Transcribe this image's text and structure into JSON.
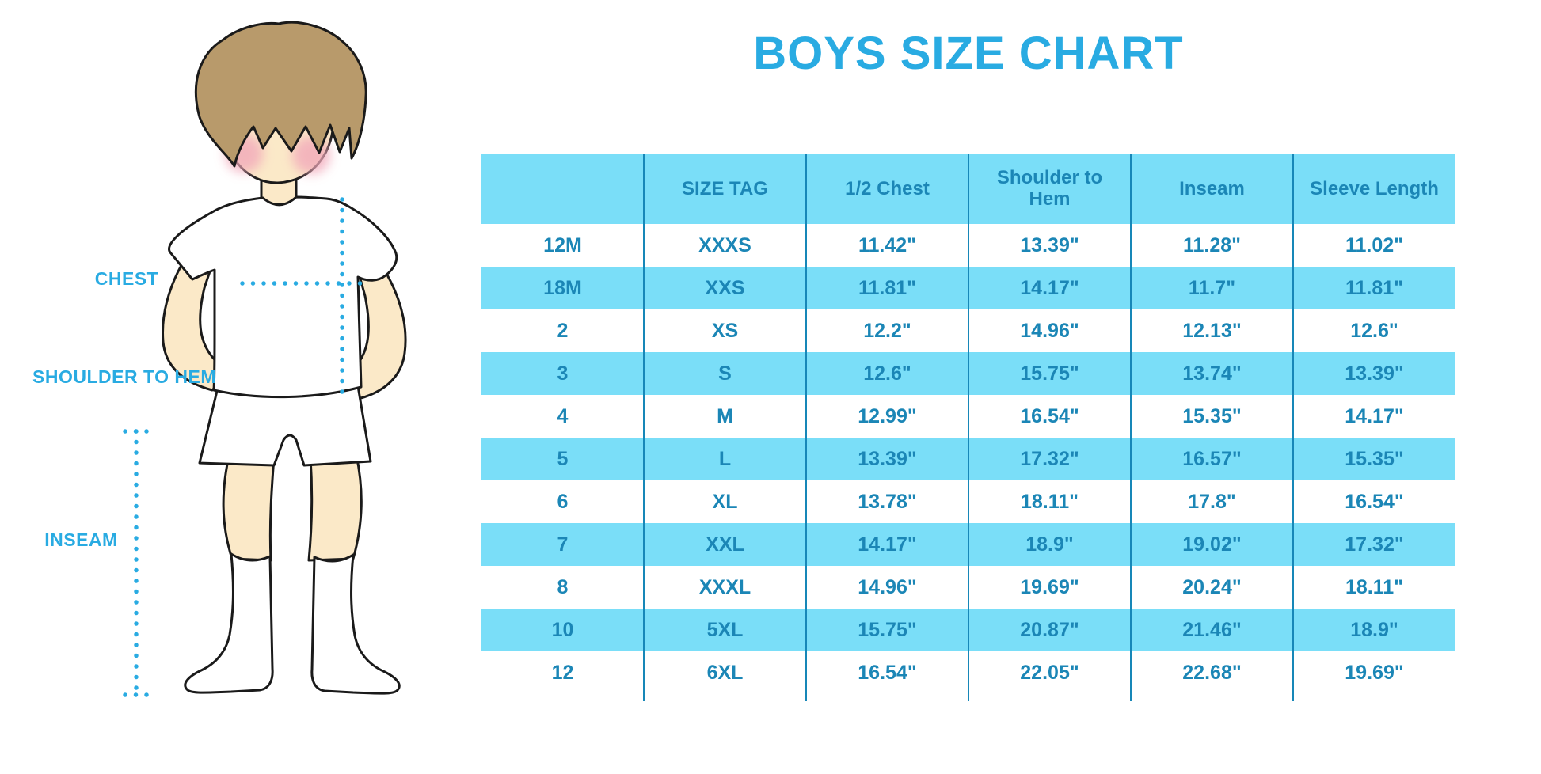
{
  "title": "BOYS SIZE CHART",
  "figure": {
    "labels": {
      "chest": "CHEST",
      "shoulder_to_hem": "SHOULDER TO HEM",
      "inseam": "INSEAM"
    }
  },
  "chart_data": {
    "type": "table",
    "title": "BOYS SIZE CHART",
    "columns": [
      "",
      "SIZE TAG",
      "1/2 Chest",
      "Shoulder to Hem",
      "Inseam",
      "Sleeve Length"
    ],
    "rows": [
      [
        "12M",
        "XXXS",
        "11.42\"",
        "13.39\"",
        "11.28\"",
        "11.02\""
      ],
      [
        "18M",
        "XXS",
        "11.81\"",
        "14.17\"",
        "11.7\"",
        "11.81\""
      ],
      [
        "2",
        "XS",
        "12.2\"",
        "14.96\"",
        "12.13\"",
        "12.6\""
      ],
      [
        "3",
        "S",
        "12.6\"",
        "15.75\"",
        "13.74\"",
        "13.39\""
      ],
      [
        "4",
        "M",
        "12.99\"",
        "16.54\"",
        "15.35\"",
        "14.17\""
      ],
      [
        "5",
        "L",
        "13.39\"",
        "17.32\"",
        "16.57\"",
        "15.35\""
      ],
      [
        "6",
        "XL",
        "13.78\"",
        "18.11\"",
        "17.8\"",
        "16.54\""
      ],
      [
        "7",
        "XXL",
        "14.17\"",
        "18.9\"",
        "19.02\"",
        "17.32\""
      ],
      [
        "8",
        "XXXL",
        "14.96\"",
        "19.69\"",
        "20.24\"",
        "18.11\""
      ],
      [
        "10",
        "5XL",
        "15.75\"",
        "20.87\"",
        "21.46\"",
        "18.9\""
      ],
      [
        "12",
        "6XL",
        "16.54\"",
        "22.05\"",
        "22.68\"",
        "19.69\""
      ]
    ],
    "layout": {
      "stripe_pattern": "alternating rows, second row shaded",
      "grid": "vertical column dividers only, no outer border"
    }
  },
  "colors": {
    "accent": "#29abe2",
    "stripe": "#7adef8",
    "table_text": "#1b86b6",
    "divider": "#1787b8",
    "skin": "#fbe9c8",
    "hair": "#b89a6b",
    "blush": "#f2a9ba"
  }
}
